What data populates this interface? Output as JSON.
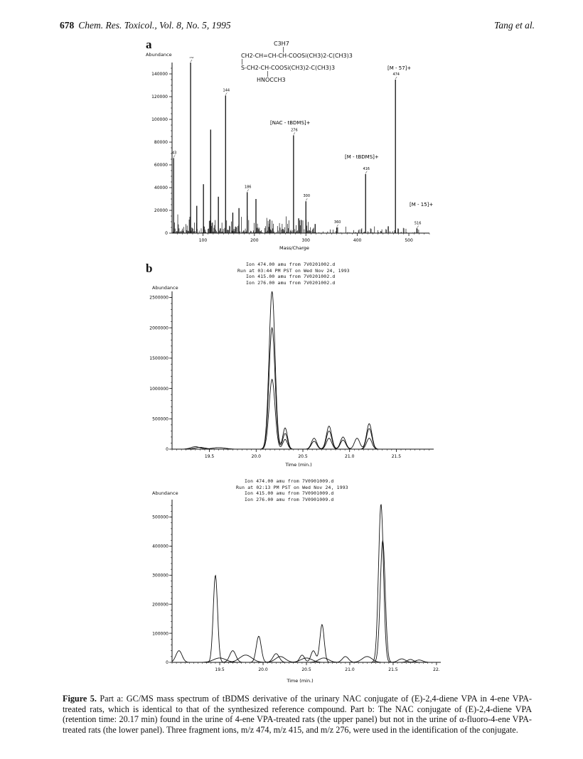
{
  "header": {
    "page_number": "678",
    "journal": "Chem. Res. Toxicol., Vol. 8, No. 5, 1995",
    "authors": "Tang et al."
  },
  "panel_a": {
    "label": "a",
    "y_axis_title": "Abundance",
    "x_axis_title": "Mass/Charge",
    "y_ticks": [
      "140000",
      "120000",
      "100000",
      "80000",
      "60000",
      "40000",
      "20000",
      "0"
    ],
    "x_ticks": [
      "100",
      "200",
      "300",
      "400",
      "500"
    ],
    "structure_lines": [
      "C3H7",
      "CH2-CH=CH-CH-COOSi(CH3)2-C(CH3)3",
      "S-CH2-CH-COOSi(CH3)2-C(CH3)3",
      "HNOCCH3"
    ],
    "annotations": [
      "[M - 57]+",
      "[NAC - tBDMS]+",
      "[M - tBDMS]+",
      "[M - 15]+"
    ],
    "peak_labels": [
      "43",
      "76",
      "144",
      "186",
      "276",
      "300",
      "360",
      "416",
      "474",
      "516"
    ]
  },
  "panel_b_upper": {
    "label": "b",
    "y_axis_title": "Abundance",
    "x_axis_title": "Time (min.)",
    "ion_lines": [
      "Ion 474.00 amu from 7V0201002.d",
      "Run at 03:44 PM PST on Wed Nov 24, 1993",
      "Ion 415.00 amu from 7V0201002.d",
      "Ion 276.00 amu from 7V0201002.d"
    ],
    "y_ticks": [
      "2500000",
      "2000000",
      "1500000",
      "1000000",
      "500000",
      "0"
    ],
    "x_ticks": [
      "19.5",
      "20.0",
      "20.5",
      "21.0",
      "21.5"
    ]
  },
  "panel_b_lower": {
    "y_axis_title": "Abundance",
    "x_axis_title": "Time (min.)",
    "ion_lines": [
      "Ion 474.00 amu from 7V0901009.d",
      "Run at 02:13 PM PST on Wed Nov 24, 1993",
      "Ion 415.00 amu from 7V0901009.d",
      "Ion 276.00 amu from 7V0901009.d"
    ],
    "y_ticks": [
      "500000",
      "400000",
      "300000",
      "200000",
      "100000",
      "0"
    ],
    "x_ticks": [
      "19.5",
      "20.0",
      "20.5",
      "21.0",
      "21.5",
      "22."
    ]
  },
  "caption": {
    "label": "Figure 5.",
    "text": "Part a: GC/MS mass spectrum of tBDMS derivative of the urinary NAC conjugate of (E)-2,4-diene VPA in 4-ene VPA-treated rats, which is identical to that of the synthesized reference compound. Part b: The NAC conjugate of (E)-2,4-diene VPA (retention time: 20.17 min) found in the urine of 4-ene VPA-treated rats (the upper panel) but not in the urine of α-fluoro-4-ene VPA-treated rats (the lower panel). Three fragment ions, m/z 474, m/z 415, and m/z 276, were used in the identification of the conjugate."
  },
  "chart_data": [
    {
      "type": "bar",
      "title": "",
      "xlabel": "Mass/Charge",
      "ylabel": "Abundance",
      "xlim": [
        40,
        540
      ],
      "ylim": [
        0,
        150000
      ],
      "peaks": [
        {
          "mz": 43,
          "abundance": 66000,
          "label": "43"
        },
        {
          "mz": 76,
          "abundance": 150000,
          "label": "76"
        },
        {
          "mz": 88,
          "abundance": 24000
        },
        {
          "mz": 101,
          "abundance": 43000
        },
        {
          "mz": 115,
          "abundance": 91000
        },
        {
          "mz": 130,
          "abundance": 32000
        },
        {
          "mz": 144,
          "abundance": 121000,
          "label": "144"
        },
        {
          "mz": 158,
          "abundance": 18000
        },
        {
          "mz": 170,
          "abundance": 22000
        },
        {
          "mz": 186,
          "abundance": 36000,
          "label": "186"
        },
        {
          "mz": 203,
          "abundance": 30000
        },
        {
          "mz": 230,
          "abundance": 12000
        },
        {
          "mz": 276,
          "abundance": 86000,
          "label": "276"
        },
        {
          "mz": 286,
          "abundance": 13000
        },
        {
          "mz": 300,
          "abundance": 28000,
          "label": "300"
        },
        {
          "mz": 318,
          "abundance": 8000
        },
        {
          "mz": 360,
          "abundance": 5000,
          "label": "360"
        },
        {
          "mz": 416,
          "abundance": 52000,
          "label": "416"
        },
        {
          "mz": 460,
          "abundance": 6000
        },
        {
          "mz": 474,
          "abundance": 135000,
          "label": "474"
        },
        {
          "mz": 516,
          "abundance": 4000,
          "label": "516"
        }
      ]
    },
    {
      "type": "line",
      "title": "",
      "xlabel": "Time (min.)",
      "ylabel": "Abundance",
      "xlim": [
        19.1,
        21.9
      ],
      "ylim": [
        0,
        2600000
      ],
      "series": [
        {
          "name": "Ion 474.00",
          "peaks": [
            [
              19.35,
              40000,
              0.07
            ],
            [
              20.17,
              2600000,
              0.045
            ],
            [
              20.31,
              350000,
              0.035
            ],
            [
              20.62,
              180000,
              0.04
            ],
            [
              20.78,
              380000,
              0.04
            ],
            [
              20.93,
              200000,
              0.04
            ],
            [
              21.08,
              180000,
              0.04
            ],
            [
              21.21,
              420000,
              0.04
            ]
          ]
        },
        {
          "name": "Ion 415.00",
          "peaks": [
            [
              19.4,
              30000,
              0.08
            ],
            [
              20.17,
              2000000,
              0.045
            ],
            [
              20.31,
              260000,
              0.035
            ],
            [
              20.62,
              130000,
              0.04
            ],
            [
              20.78,
              300000,
              0.04
            ],
            [
              20.93,
              150000,
              0.04
            ],
            [
              21.21,
              340000,
              0.04
            ]
          ]
        },
        {
          "name": "Ion 276.00",
          "peaks": [
            [
              19.6,
              25000,
              0.1
            ],
            [
              20.17,
              1150000,
              0.045
            ],
            [
              20.31,
              160000,
              0.035
            ],
            [
              20.78,
              180000,
              0.04
            ],
            [
              21.21,
              180000,
              0.04
            ]
          ]
        }
      ]
    },
    {
      "type": "line",
      "title": "",
      "xlabel": "Time (min.)",
      "ylabel": "Abundance",
      "xlim": [
        18.95,
        22.05
      ],
      "ylim": [
        0,
        560000
      ],
      "series": [
        {
          "name": "Ion 474.00",
          "peaks": [
            [
              19.03,
              40000,
              0.05
            ],
            [
              19.45,
              300000,
              0.035
            ],
            [
              19.65,
              40000,
              0.05
            ],
            [
              19.95,
              90000,
              0.04
            ],
            [
              20.15,
              30000,
              0.05
            ],
            [
              20.45,
              25000,
              0.04
            ],
            [
              20.58,
              40000,
              0.04
            ],
            [
              20.68,
              130000,
              0.035
            ],
            [
              20.95,
              20000,
              0.05
            ],
            [
              21.36,
              545000,
              0.04
            ],
            [
              21.7,
              10000,
              0.05
            ]
          ]
        },
        {
          "name": "Ion 415.00",
          "peaks": [
            [
              19.5,
              15000,
              0.1
            ],
            [
              20.2,
              20000,
              0.08
            ],
            [
              20.7,
              15000,
              0.08
            ],
            [
              21.38,
              420000,
              0.04
            ],
            [
              21.8,
              8000,
              0.06
            ]
          ]
        },
        {
          "name": "Ion 276.00",
          "peaks": [
            [
              19.8,
              25000,
              0.1
            ],
            [
              20.5,
              15000,
              0.09
            ],
            [
              21.2,
              20000,
              0.08
            ],
            [
              21.6,
              12000,
              0.06
            ]
          ]
        }
      ]
    }
  ]
}
